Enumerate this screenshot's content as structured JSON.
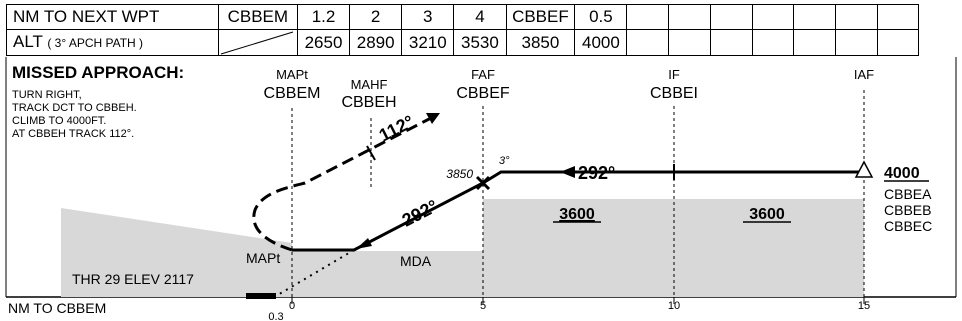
{
  "header_table": {
    "row1": {
      "label": "NM TO NEXT WPT",
      "cells": [
        "CBBEM",
        "1.2",
        "2",
        "3",
        "4",
        "CBBEF",
        "0.5",
        "",
        "",
        "",
        "",
        "",
        "",
        ""
      ]
    },
    "row2": {
      "label": "ALT",
      "label_note": "( 3° APCH PATH )",
      "cells": [
        "",
        "2650",
        "2890",
        "3210",
        "3530",
        "3850",
        "4000",
        "",
        "",
        "",
        "",
        "",
        "",
        ""
      ]
    }
  },
  "missed_approach": {
    "title": "MISSED APPROACH:",
    "lines": [
      "TURN RIGHT,",
      "TRACK DCT TO CBBEH.",
      "CLIMB TO 4000FT.",
      "AT CBBEH TRACK 112°."
    ]
  },
  "fixes": [
    {
      "role": "MAPt",
      "name": "CBBEM"
    },
    {
      "role": "MAHF",
      "name": "CBBEH"
    },
    {
      "role": "FAF",
      "name": "CBBEF"
    },
    {
      "role": "IF",
      "name": "CBBEI"
    },
    {
      "role": "IAF",
      "name": ""
    }
  ],
  "labels": {
    "missed_track": "112°",
    "final_track": "292°",
    "intermediate_track": "292°",
    "faf_alt": "3850",
    "glide_angle": "3°",
    "seg_alt_1": "3600",
    "seg_alt_2": "3600",
    "iaf_alt": "4000",
    "iaf_waypoints": [
      "CBBEA",
      "CBBEB",
      "CBBEC"
    ],
    "mapt_label": "MAPt",
    "mda_label": "MDA",
    "threshold": "THR 29 ELEV 2117"
  },
  "distance_scale": {
    "title": "NM TO CBBEM",
    "ticks": [
      "0",
      "5",
      "10",
      "15"
    ],
    "offset": "0.3"
  }
}
